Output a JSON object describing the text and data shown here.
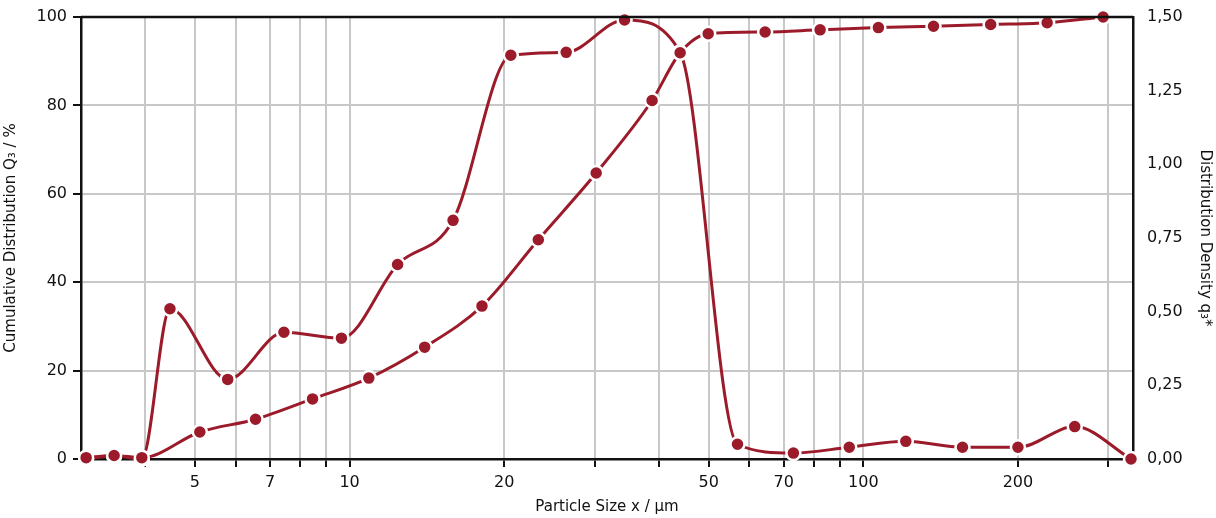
{
  "chart_data": {
    "type": "line",
    "xlabel": "Particle Size x / µm",
    "ylabel": "Cumulative Distribution Q₃ / %",
    "y2label": "Distribution Density q₃*",
    "log": "x",
    "grid": true,
    "legend": false,
    "marker": "circle",
    "line_style": "solid",
    "xlim": [
      3,
      335
    ],
    "xticks": [
      {
        "value": 4,
        "label": null
      },
      5,
      {
        "value": 6,
        "label": null
      },
      7,
      {
        "value": 8,
        "label": null
      },
      {
        "value": 9,
        "label": null
      },
      10,
      20,
      {
        "value": 30,
        "label": null
      },
      {
        "value": 40,
        "label": null
      },
      50,
      {
        "value": 60,
        "label": null
      },
      70,
      {
        "value": 80,
        "label": null
      },
      {
        "value": 90,
        "label": null
      },
      100,
      200,
      {
        "value": 300,
        "label": null
      }
    ],
    "ylim": [
      0,
      100
    ],
    "yticks": [
      0,
      20,
      40,
      60,
      80,
      100
    ],
    "y2lim": [
      0,
      1.5
    ],
    "y2ticks": [
      {
        "value": 0,
        "label": "0,00"
      },
      {
        "value": 0.25,
        "label": "0,25"
      },
      {
        "value": 0.5,
        "label": "0,50"
      },
      {
        "value": 0.75,
        "label": "0,75"
      },
      {
        "value": 1,
        "label": "1,00"
      },
      {
        "value": 1.25,
        "label": "1,25"
      },
      {
        "value": 1.5,
        "label": "1,50"
      }
    ],
    "series": [
      {
        "color": "#9b1b2a",
        "x": [
          3.07,
          3.48,
          3.94,
          5.11,
          6.56,
          8.47,
          10.9,
          14.0,
          18.1,
          23.3,
          30.2,
          38.8,
          44.0,
          49.9,
          64.4,
          82.4,
          107,
          137,
          177,
          228,
          293
        ],
        "values": [
          0.3,
          0.8,
          0.3,
          6.1,
          9.0,
          13.6,
          18.3,
          25.3,
          34.6,
          49.6,
          64.7,
          81.1,
          91.9,
          96.2,
          96.6,
          97.1,
          97.6,
          97.9,
          98.3,
          98.7,
          100
        ]
      },
      {
        "color": "#9b1b2a",
        "axis": "y2",
        "x": [
          3.07,
          3.48,
          3.94,
          4.47,
          5.79,
          7.45,
          9.64,
          12.4,
          15.9,
          20.6,
          26.4,
          34.3,
          44.0,
          56.9,
          73.1,
          93.9,
          121,
          156,
          200,
          258,
          332
        ],
        "values": [
          0.0,
          0.01,
          0.0,
          0.51,
          0.27,
          0.43,
          0.41,
          0.66,
          0.81,
          1.37,
          1.38,
          1.49,
          1.38,
          0.05,
          0.02,
          0.04,
          0.06,
          0.04,
          0.04,
          0.11,
          0.0
        ]
      }
    ]
  }
}
